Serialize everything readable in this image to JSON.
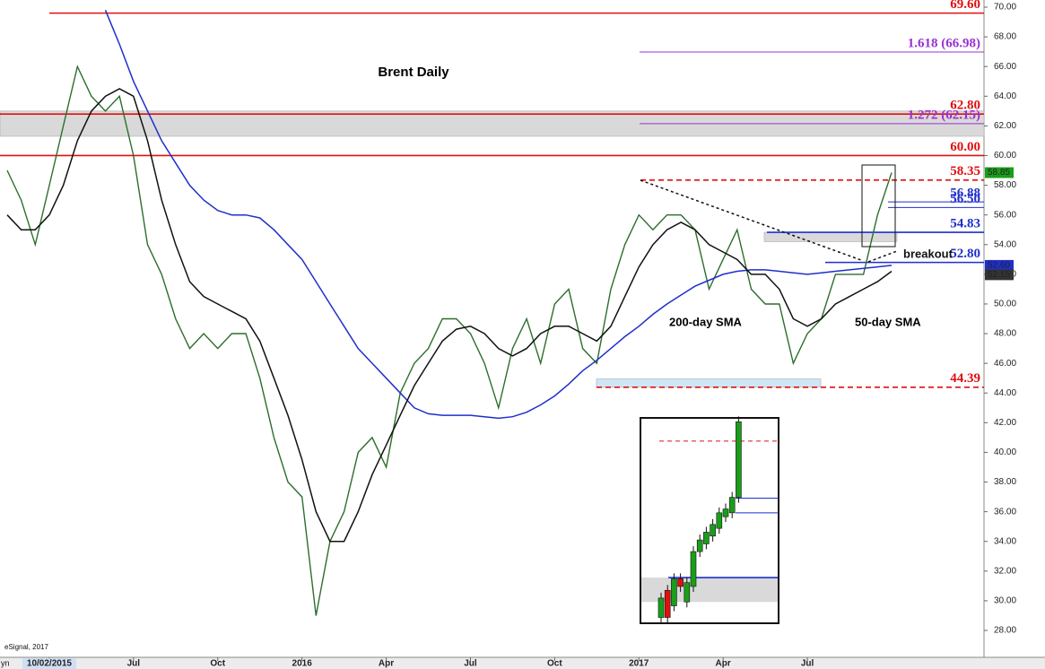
{
  "chart_data": {
    "type": "line",
    "title": "Brent Daily",
    "categories": [
      null,
      null,
      null,
      "10/02/2015",
      null,
      null,
      null,
      null,
      null,
      "Jul",
      null,
      null,
      null,
      null,
      null,
      "Oct",
      null,
      null,
      null,
      null,
      null,
      "2016",
      null,
      null,
      null,
      null,
      null,
      "Apr",
      null,
      null,
      null,
      null,
      null,
      "Jul",
      null,
      null,
      null,
      null,
      null,
      "Oct",
      null,
      null,
      null,
      null,
      null,
      "2017",
      null,
      null,
      null,
      null,
      null,
      "Apr",
      null,
      null,
      null,
      null,
      null,
      "Jul",
      null,
      null,
      null,
      null,
      null,
      null
    ],
    "series": [
      {
        "color": "#2c6e2c",
        "values": [
          59,
          57,
          54,
          58,
          62,
          66,
          64,
          63,
          64,
          60,
          54,
          52,
          49,
          47,
          48,
          47,
          48,
          48,
          45,
          41,
          38,
          37,
          29,
          34,
          36,
          40,
          41,
          39,
          44,
          46,
          47,
          49,
          49,
          48,
          46,
          43,
          47,
          49,
          46,
          50,
          51,
          47,
          46,
          51,
          54,
          56,
          55,
          56,
          56,
          55,
          51,
          53,
          55,
          51,
          50,
          50,
          46,
          48,
          49,
          52,
          52,
          52,
          56,
          58.85
        ]
      },
      {
        "name": "200-day SMA",
        "color": "#1f2fcc",
        "values": [
          null,
          null,
          null,
          null,
          null,
          null,
          null,
          69.8,
          67.5,
          65,
          63,
          61,
          59.5,
          58,
          57,
          56.3,
          56,
          56,
          55.8,
          55,
          54,
          53,
          51.5,
          50,
          48.5,
          47,
          46,
          45,
          44,
          43,
          42.6,
          42.5,
          42.5,
          42.5,
          42.4,
          42.3,
          42.4,
          42.7,
          43.2,
          43.8,
          44.6,
          45.5,
          46.2,
          47,
          47.8,
          48.5,
          49.3,
          50,
          50.6,
          51.2,
          51.6,
          52,
          52.2,
          52.3,
          52.3,
          52.2,
          52.1,
          52,
          52.1,
          52.2,
          52.3,
          52.4,
          52.5,
          52.6
        ]
      },
      {
        "name": "50-day SMA",
        "color": "#111111",
        "values": [
          56,
          55,
          55,
          56,
          58,
          61,
          63,
          64,
          64.5,
          64,
          61,
          57,
          54,
          51.5,
          50.5,
          50,
          49.5,
          49,
          47.5,
          45,
          42.5,
          39.5,
          36,
          34,
          34,
          36,
          38.5,
          40.5,
          42.5,
          44.5,
          46,
          47.5,
          48.3,
          48.5,
          48,
          47,
          46.5,
          47,
          48,
          48.5,
          48.5,
          48,
          47.5,
          48.5,
          50.5,
          52.5,
          54,
          55,
          55.5,
          55,
          54,
          53.5,
          53,
          52,
          52,
          51,
          49,
          48.5,
          49,
          50,
          50.5,
          51,
          51.5,
          52.2
        ]
      }
    ],
    "ylim": [
      28,
      70
    ],
    "yticks": [
      {
        "value": 28,
        "label": "28.00"
      },
      {
        "value": 30,
        "label": "30.00"
      },
      {
        "value": 32,
        "label": "32.00"
      },
      {
        "value": 34,
        "label": "34.00"
      },
      {
        "value": 36,
        "label": "36.00"
      },
      {
        "value": 38,
        "label": "38.00"
      },
      {
        "value": 40,
        "label": "40.00"
      },
      {
        "value": 42,
        "label": "42.00"
      },
      {
        "value": 44,
        "label": "44.00"
      },
      {
        "value": 46,
        "label": "46.00"
      },
      {
        "value": 48,
        "label": "48.00"
      },
      {
        "value": 50,
        "label": "50.00"
      },
      {
        "value": 52,
        "label": "52.00"
      },
      {
        "value": 54,
        "label": "54.00"
      },
      {
        "value": 56,
        "label": "56.00"
      },
      {
        "value": 58,
        "label": "58.00"
      },
      {
        "value": 60,
        "label": "60.00"
      },
      {
        "value": 62,
        "label": "62.00"
      },
      {
        "value": 64,
        "label": "64.00"
      },
      {
        "value": 66,
        "label": "66.00"
      },
      {
        "value": 68,
        "label": "68.00"
      },
      {
        "value": 70,
        "label": "70.00"
      }
    ],
    "levels": [
      {
        "label": "69.60",
        "value": 69.6,
        "color": "#e01010",
        "dashed": false
      },
      {
        "label": "1.618 (66.98)",
        "value": 66.98,
        "color": "#9a30d0",
        "dashed": false
      },
      {
        "label": "62.80",
        "value": 62.8,
        "color": "#e01010",
        "dashed": false
      },
      {
        "label": "1.272 (62.15)",
        "value": 62.15,
        "color": "#9a30d0",
        "dashed": false
      },
      {
        "label": "60.00",
        "value": 60.0,
        "color": "#e01010",
        "dashed": false
      },
      {
        "label": "58.35",
        "value": 58.35,
        "color": "#e01010",
        "dashed": true
      },
      {
        "label": "56.88",
        "value": 56.88,
        "color": "#1f2fcc",
        "dashed": false
      },
      {
        "label": "56.50",
        "value": 56.5,
        "color": "#1f2fcc",
        "dashed": false
      },
      {
        "label": "54.83",
        "value": 54.83,
        "color": "#1f2fcc",
        "dashed": false
      },
      {
        "label": "52.80",
        "value": 52.8,
        "color": "#1f2fcc",
        "dashed": false
      },
      {
        "label": "44.39",
        "value": 44.39,
        "color": "#e01010",
        "dashed": true
      }
    ],
    "zones": [
      {
        "low": 61.3,
        "high": 63.0,
        "color": "#d9d9d9"
      },
      {
        "low": 54.2,
        "high": 54.83,
        "color": "#d9d9d9"
      },
      {
        "low": 44.39,
        "high": 44.95,
        "color": "#cfe6f7"
      }
    ],
    "price_tags": [
      {
        "label": "58.85",
        "value": 58.85,
        "color": "#1a9e1a"
      },
      {
        "label": "52.60",
        "value": 52.6,
        "color": "#1f2fcc"
      },
      {
        "label": "52.15",
        "value": 52.15,
        "color": "#333333"
      }
    ],
    "annotations": [
      "breakout",
      "200-day SMA",
      "50-day SMA",
      "eSignal, 2017",
      "yn"
    ],
    "inset": {
      "ylim": [
        53.65,
        58.95
      ],
      "up_color": "#1a9e1a",
      "down_color": "#e01010",
      "candles": [
        {
          "open": 53.8,
          "close": 54.3
        },
        {
          "open": 54.5,
          "close": 53.8
        },
        {
          "open": 54.1,
          "close": 54.8
        },
        {
          "open": 54.8,
          "close": 54.6
        },
        {
          "open": 54.2,
          "close": 54.7
        },
        {
          "open": 54.6,
          "close": 55.5
        },
        {
          "open": 55.5,
          "close": 55.8
        },
        {
          "open": 55.7,
          "close": 56.0
        },
        {
          "open": 55.9,
          "close": 56.2
        },
        {
          "open": 56.1,
          "close": 56.5
        },
        {
          "open": 56.4,
          "close": 56.6
        },
        {
          "open": 56.5,
          "close": 56.9
        },
        {
          "open": 56.9,
          "close": 58.85
        }
      ]
    }
  }
}
